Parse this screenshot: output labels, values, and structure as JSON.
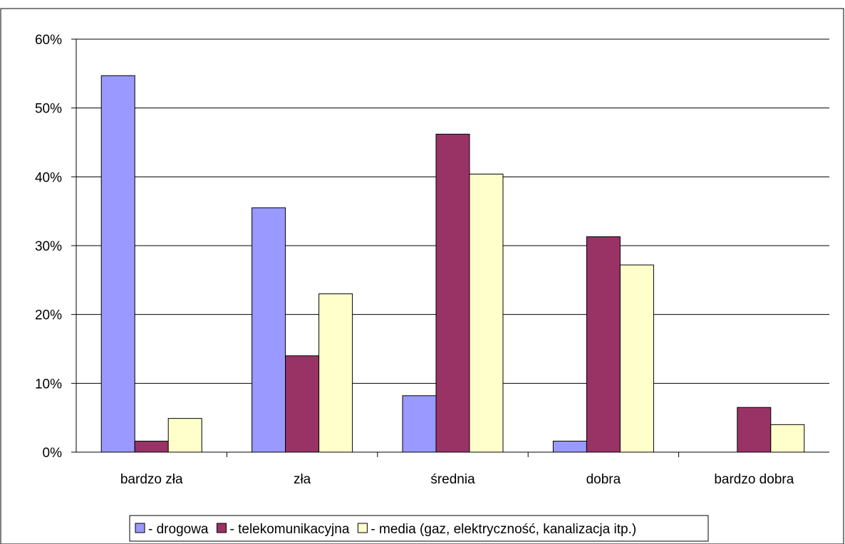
{
  "chart_data": {
    "type": "bar",
    "categories": [
      "bardzo zła",
      "zła",
      "średnia",
      "dobra",
      "bardzo dobra"
    ],
    "series": [
      {
        "name": "- drogowa",
        "values": [
          54.7,
          35.5,
          8.2,
          1.6,
          0
        ],
        "color": "#9999ff"
      },
      {
        "name": "- telekomunikacyjna",
        "values": [
          1.6,
          14.0,
          46.2,
          31.3,
          6.5
        ],
        "color": "#993366"
      },
      {
        "name": "- media (gaz, elektryczność, kanalizacja itp.)",
        "values": [
          4.9,
          23.0,
          40.4,
          27.2,
          4.0
        ],
        "color": "#ffffcc"
      }
    ],
    "title": "",
    "xlabel": "",
    "ylabel": "",
    "ylim": [
      0,
      60
    ],
    "yticks": [
      "0%",
      "10%",
      "20%",
      "30%",
      "40%",
      "50%",
      "60%"
    ],
    "grid": true,
    "legend_position": "bottom"
  }
}
